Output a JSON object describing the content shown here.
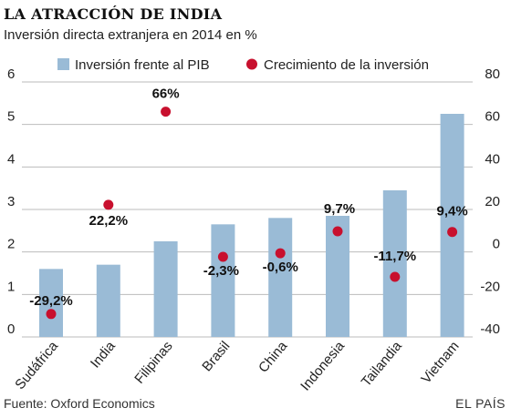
{
  "title": "LA ATRACCIÓN DE INDIA",
  "subtitle": "Inversión directa extranjera en 2014 en %",
  "source": "Fuente: Oxford Economics",
  "credit": "EL PAÍS",
  "colors": {
    "bar": "#9abbd6",
    "dot": "#c8102e",
    "grid": "#bbbbbb"
  },
  "chart_data": {
    "type": "bar",
    "categories": [
      "Sudáfrica",
      "India",
      "Filipinas",
      "Brasil",
      "China",
      "Indonesia",
      "Tailandia",
      "Vietnam"
    ],
    "series": [
      {
        "name": "Inversión frente al PIB",
        "type": "bar",
        "axis": "left",
        "values": [
          1.6,
          1.7,
          2.25,
          2.65,
          2.8,
          2.85,
          3.45,
          5.25
        ]
      },
      {
        "name": "Crecimiento de la inversión",
        "type": "scatter",
        "axis": "right",
        "values": [
          -29.2,
          22.2,
          66,
          -2.3,
          -0.6,
          9.7,
          -11.7,
          9.4
        ],
        "labels": [
          "-29,2%",
          "22,2%",
          "66%",
          "-2,3%",
          "-0,6%",
          "9,7%",
          "-11,7%",
          "9,4%"
        ]
      }
    ],
    "y_left": {
      "ticks": [
        "0",
        "1",
        "2",
        "3",
        "4",
        "5",
        "6"
      ],
      "range": [
        0,
        6
      ]
    },
    "y_right": {
      "ticks": [
        "-40",
        "-20",
        "0",
        "20",
        "40",
        "60",
        "80"
      ],
      "range": [
        -40,
        80
      ]
    },
    "grid": true,
    "legend_position": "top"
  }
}
